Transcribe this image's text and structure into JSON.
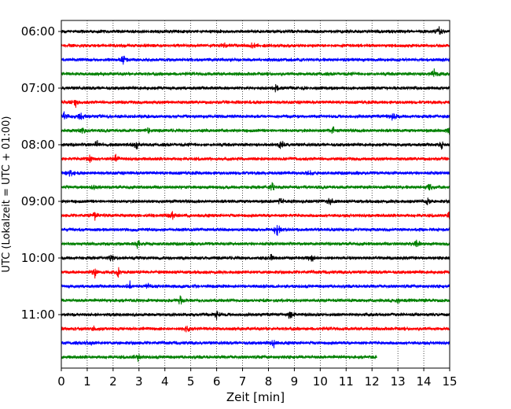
{
  "chart_data": {
    "type": "line",
    "title": "",
    "xlabel": "Zeit  [min]",
    "ylabel": "UTC (Lokalzeit = UTC + 01:00)",
    "xlim": [
      0,
      15
    ],
    "x_ticks": [
      "0",
      "1",
      "2",
      "3",
      "4",
      "5",
      "6",
      "7",
      "8",
      "9",
      "10",
      "11",
      "12",
      "13",
      "14",
      "15"
    ],
    "y_ticks": [
      "06:00",
      "07:00",
      "08:00",
      "09:00",
      "10:00",
      "11:00"
    ],
    "grid": "vertical dotted",
    "trace_interval_minutes": 15,
    "traces_start": "06:00",
    "color_cycle": [
      "#000000",
      "#ff0000",
      "#0000ff",
      "#008000"
    ],
    "traces": [
      {
        "start": "06:00",
        "end_min": 15,
        "events": [
          14.6
        ]
      },
      {
        "start": "06:15",
        "end_min": 15,
        "events": [
          7.4,
          6.3
        ]
      },
      {
        "start": "06:30",
        "end_min": 15,
        "events": [
          2.4
        ]
      },
      {
        "start": "06:45",
        "end_min": 15,
        "events": [
          14.4
        ]
      },
      {
        "start": "07:00",
        "end_min": 15,
        "events": [
          8.3
        ]
      },
      {
        "start": "07:15",
        "end_min": 15,
        "events": [
          0.55
        ]
      },
      {
        "start": "07:30",
        "end_min": 15,
        "events": [
          0.1,
          0.75,
          12.8
        ]
      },
      {
        "start": "07:45",
        "end_min": 15,
        "events": [
          0.8,
          3.4,
          10.5,
          15.0
        ]
      },
      {
        "start": "08:00",
        "end_min": 15,
        "events": [
          1.4,
          2.9,
          8.5,
          14.7
        ]
      },
      {
        "start": "08:15",
        "end_min": 15,
        "events": [
          1.1,
          2.1
        ]
      },
      {
        "start": "08:30",
        "end_min": 15,
        "events": [
          0.35,
          9.6
        ]
      },
      {
        "start": "08:45",
        "end_min": 15,
        "events": [
          1.25,
          8.15,
          14.25
        ]
      },
      {
        "start": "09:00",
        "end_min": 15,
        "events": [
          8.45,
          10.35,
          14.15
        ]
      },
      {
        "start": "09:15",
        "end_min": 15,
        "events": [
          1.3,
          4.3,
          15.0
        ]
      },
      {
        "start": "09:30",
        "end_min": 15,
        "events": [
          8.3,
          8.35
        ]
      },
      {
        "start": "09:45",
        "end_min": 15,
        "events": [
          2.95,
          13.75
        ]
      },
      {
        "start": "10:00",
        "end_min": 15,
        "events": [
          1.95,
          8.1,
          9.65
        ]
      },
      {
        "start": "10:15",
        "end_min": 15,
        "events": [
          1.3,
          2.2
        ]
      },
      {
        "start": "10:30",
        "end_min": 15,
        "events": [
          2.65,
          3.35
        ]
      },
      {
        "start": "10:45",
        "end_min": 15,
        "events": [
          4.6,
          13.05
        ]
      },
      {
        "start": "11:00",
        "end_min": 15,
        "events": [
          8.85,
          6.0
        ]
      },
      {
        "start": "11:15",
        "end_min": 15,
        "events": [
          4.85,
          1.25
        ]
      },
      {
        "start": "11:30",
        "end_min": 15,
        "events": [
          1.05,
          8.2
        ]
      },
      {
        "start": "11:45",
        "end_min": 12.2,
        "events": [
          2.95
        ]
      }
    ]
  }
}
